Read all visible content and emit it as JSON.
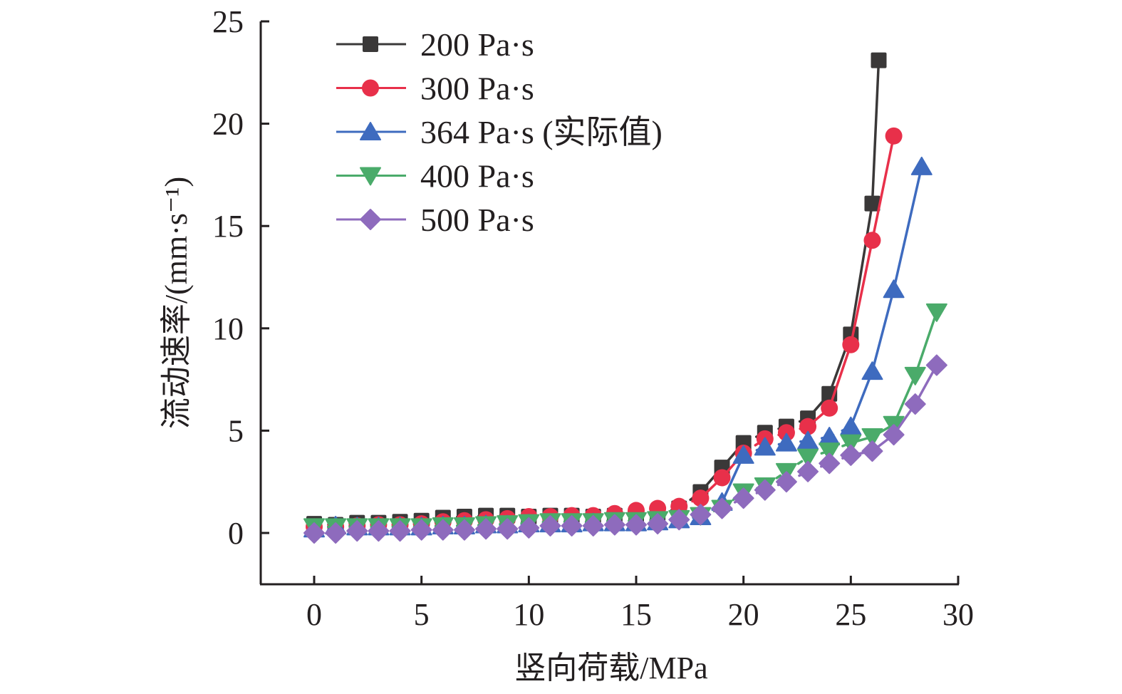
{
  "chart_data": {
    "type": "line",
    "title": "",
    "xlabel": "竖向荷载/MPa",
    "ylabel": "流动速率/(mm·s⁻¹)",
    "xlim": [
      -2.5,
      30
    ],
    "ylim": [
      -2.5,
      25
    ],
    "xticks": [
      0,
      5,
      10,
      15,
      20,
      25,
      30
    ],
    "yticks": [
      0,
      5,
      10,
      15,
      20,
      25
    ],
    "xtick_labels": [
      "0",
      "5",
      "10",
      "15",
      "20",
      "25",
      "30"
    ],
    "ytick_labels": [
      "0",
      "5",
      "10",
      "15",
      "20",
      "25"
    ],
    "grid": false,
    "legend_position": "top-left",
    "series": [
      {
        "name": "200 Pa·s",
        "label": "200 Pa·s",
        "color": "#3a3838",
        "marker": "square",
        "x": [
          0,
          1,
          2,
          3,
          4,
          5,
          6,
          7,
          8,
          9,
          10,
          11,
          12,
          13,
          14,
          15,
          16,
          17,
          18,
          19,
          20,
          21,
          22,
          23,
          24,
          25,
          26,
          26.3
        ],
        "y": [
          0.45,
          0.4,
          0.5,
          0.5,
          0.55,
          0.6,
          0.75,
          0.8,
          0.85,
          0.85,
          0.8,
          0.85,
          0.85,
          0.8,
          0.85,
          0.9,
          0.95,
          1.2,
          2.0,
          3.2,
          4.4,
          4.9,
          5.2,
          5.6,
          6.8,
          9.7,
          16.1,
          23.1
        ]
      },
      {
        "name": "300 Pa·s",
        "label": "300 Pa·s",
        "color": "#e8304a",
        "marker": "circle",
        "x": [
          0,
          1,
          2,
          3,
          4,
          5,
          6,
          7,
          8,
          9,
          10,
          11,
          12,
          13,
          14,
          15,
          16,
          17,
          18,
          19,
          20,
          21,
          22,
          23,
          24,
          25,
          26,
          27
        ],
        "y": [
          0.3,
          0.3,
          0.35,
          0.4,
          0.4,
          0.45,
          0.55,
          0.6,
          0.65,
          0.7,
          0.8,
          0.8,
          0.85,
          0.85,
          0.95,
          1.1,
          1.2,
          1.3,
          1.7,
          2.7,
          3.9,
          4.6,
          4.9,
          5.2,
          6.1,
          9.2,
          14.3,
          19.4
        ]
      },
      {
        "name": "364 Pa·s (实际值)",
        "label": "364 Pa·s (实际值)",
        "color": "#3e6bbf",
        "marker": "triangle-up",
        "x": [
          0,
          1,
          2,
          3,
          4,
          5,
          6,
          7,
          8,
          9,
          10,
          11,
          12,
          13,
          14,
          15,
          16,
          17,
          18,
          19,
          20,
          21,
          22,
          23,
          24,
          25,
          26,
          27,
          28.3
        ],
        "y": [
          0.2,
          0.35,
          0.3,
          0.3,
          0.3,
          0.3,
          0.35,
          0.35,
          0.4,
          0.4,
          0.45,
          0.45,
          0.45,
          0.5,
          0.5,
          0.5,
          0.55,
          0.65,
          0.8,
          1.5,
          3.8,
          4.2,
          4.4,
          4.5,
          4.7,
          5.2,
          7.9,
          11.9,
          17.9
        ]
      },
      {
        "name": "400 Pa·s",
        "label": "400 Pa·s",
        "color": "#4aab6a",
        "marker": "triangle-down",
        "x": [
          0,
          1,
          2,
          3,
          4,
          5,
          6,
          7,
          8,
          9,
          10,
          11,
          12,
          13,
          14,
          15,
          16,
          17,
          18,
          19,
          20,
          21,
          22,
          23,
          24,
          25,
          26,
          27,
          28,
          29
        ],
        "y": [
          0.3,
          0.3,
          0.3,
          0.3,
          0.3,
          0.3,
          0.35,
          0.35,
          0.4,
          0.45,
          0.5,
          0.55,
          0.55,
          0.55,
          0.6,
          0.6,
          0.65,
          0.7,
          0.85,
          1.2,
          2.0,
          2.3,
          3.0,
          3.7,
          4.0,
          4.4,
          4.7,
          5.3,
          7.7,
          10.8
        ]
      },
      {
        "name": "500 Pa·s",
        "label": "500 Pa·s",
        "color": "#8e6bbd",
        "marker": "diamond",
        "x": [
          0,
          1,
          2,
          3,
          4,
          5,
          6,
          7,
          8,
          9,
          10,
          11,
          12,
          13,
          14,
          15,
          16,
          17,
          18,
          19,
          20,
          21,
          22,
          23,
          24,
          25,
          26,
          27,
          28,
          29
        ],
        "y": [
          0.0,
          0.0,
          0.1,
          0.1,
          0.1,
          0.15,
          0.15,
          0.15,
          0.2,
          0.2,
          0.25,
          0.35,
          0.35,
          0.35,
          0.4,
          0.4,
          0.45,
          0.65,
          0.9,
          1.2,
          1.7,
          2.1,
          2.5,
          3.0,
          3.4,
          3.8,
          4.0,
          4.8,
          6.3,
          8.2
        ]
      }
    ]
  }
}
